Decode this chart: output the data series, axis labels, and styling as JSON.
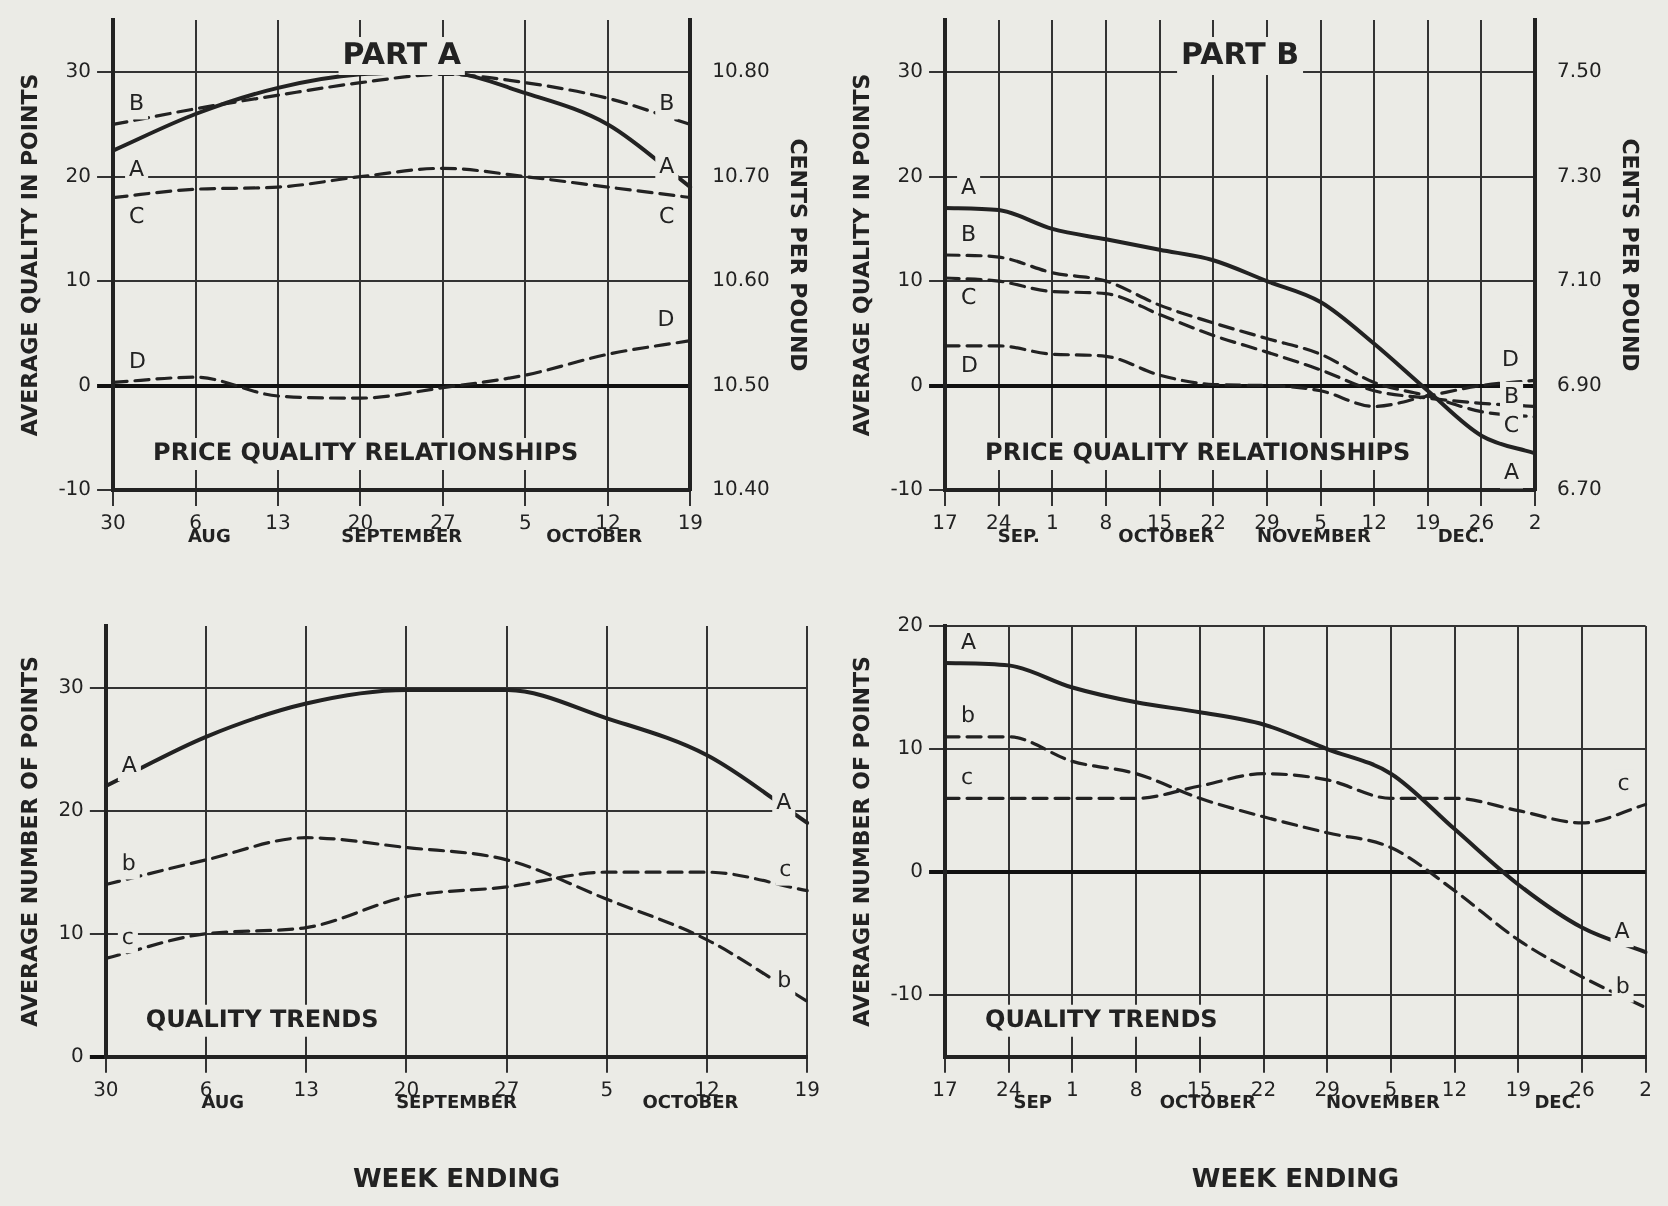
{
  "chart_data": [
    {
      "type": "line",
      "title": "PART A",
      "subtitle": "PRICE QUALITY RELATIONSHIPS",
      "ylabel": "AVERAGE QUALITY IN POINTS",
      "y2label": "CENTS PER POUND",
      "categories": [
        "30",
        "6",
        "13",
        "20",
        "27",
        "5",
        "12",
        "19"
      ],
      "series": [
        {
          "name": "A",
          "color": "#222222",
          "line_style": "solid",
          "values": [
            22.5,
            26,
            28.5,
            29.8,
            30,
            28,
            25,
            19
          ]
        },
        {
          "name": "B",
          "color": "#222222",
          "line_style": "dashed",
          "values": [
            25,
            26.5,
            27.8,
            29,
            29.8,
            29,
            27.5,
            25
          ]
        },
        {
          "name": "C",
          "color": "#222222",
          "line_style": "dashed",
          "values": [
            18,
            18.8,
            19,
            20,
            20.8,
            20,
            19,
            18
          ]
        },
        {
          "name": "D",
          "color": "#222222",
          "line_style": "dashed",
          "values": [
            0.3,
            0.8,
            -1,
            -1.2,
            -0.2,
            1,
            3,
            4.3
          ]
        }
      ],
      "ylim": [
        -10,
        35
      ],
      "yticks": [
        -10,
        0,
        10,
        20,
        30
      ],
      "y2lim": [
        10.4,
        10.85
      ],
      "y2ticks": [
        {
          "value": 10.4,
          "label": "10.40"
        },
        {
          "value": 10.5,
          "label": "10.50"
        },
        {
          "value": 10.6,
          "label": "10.60"
        },
        {
          "value": 10.7,
          "label": "10.70"
        },
        {
          "value": 10.8,
          "label": "10.80"
        }
      ],
      "annotations": [
        "AUG",
        "SEPTEMBER",
        "OCTOBER"
      ],
      "grid": true,
      "legend": false,
      "marker": "none"
    },
    {
      "type": "line",
      "title": "PART B",
      "subtitle": "PRICE QUALITY RELATIONSHIPS",
      "ylabel": "AVERAGE QUALITY IN POINTS",
      "y2label": "CENTS PER POUND",
      "categories": [
        "17",
        "24",
        "1",
        "8",
        "15",
        "22",
        "29",
        "5",
        "12",
        "19",
        "26",
        "2"
      ],
      "series": [
        {
          "name": "A",
          "color": "#222222",
          "line_style": "solid",
          "values": [
            17,
            16.8,
            15,
            14,
            13,
            12,
            10,
            8,
            4,
            -0.5,
            -4.8,
            -6.5
          ]
        },
        {
          "name": "B",
          "color": "#222222",
          "line_style": "dashed",
          "values": [
            12.5,
            12.3,
            10.8,
            10,
            7.7,
            6,
            4.5,
            3,
            0.3,
            -1,
            -2.5,
            -3
          ]
        },
        {
          "name": "C",
          "color": "#222222",
          "line_style": "dashed",
          "values": [
            10.3,
            10,
            9,
            8.8,
            6.8,
            4.8,
            3.2,
            1.5,
            -0.5,
            -1.2,
            -1.7,
            -2
          ]
        },
        {
          "name": "D",
          "color": "#222222",
          "line_style": "dashed",
          "values": [
            3.8,
            3.8,
            3,
            2.8,
            1,
            0.1,
            0,
            -0.5,
            -2,
            -1,
            0,
            0.5
          ]
        }
      ],
      "ylim": [
        -10,
        35
      ],
      "yticks": [
        -10,
        0,
        10,
        20,
        30
      ],
      "y2lim": [
        6.7,
        7.6
      ],
      "y2ticks": [
        {
          "value": 6.7,
          "label": "6.70"
        },
        {
          "value": 6.9,
          "label": "6.90"
        },
        {
          "value": 7.1,
          "label": "7.10"
        },
        {
          "value": 7.3,
          "label": "7.30"
        },
        {
          "value": 7.5,
          "label": "7.50"
        }
      ],
      "annotations": [
        "SEP.",
        "OCTOBER",
        "NOVEMBER",
        "DEC."
      ],
      "grid": true,
      "legend": false,
      "marker": "none"
    },
    {
      "type": "line",
      "subtitle": "QUALITY TRENDS",
      "ylabel": "AVERAGE NUMBER OF POINTS",
      "xlabel": "WEEK ENDING",
      "categories": [
        "30",
        "6",
        "13",
        "20",
        "27",
        "5",
        "12",
        "19"
      ],
      "series": [
        {
          "name": "A",
          "color": "#222222",
          "line_style": "solid",
          "values": [
            22,
            26,
            28.7,
            29.8,
            29.8,
            27.5,
            24.5,
            19
          ]
        },
        {
          "name": "b",
          "color": "#222222",
          "line_style": "dashed",
          "values": [
            14,
            16,
            17.8,
            17,
            16,
            12.8,
            9.5,
            4.5
          ]
        },
        {
          "name": "c",
          "color": "#222222",
          "line_style": "dashed",
          "values": [
            8,
            10,
            10.5,
            13,
            13.8,
            15,
            15,
            13.5
          ]
        }
      ],
      "ylim": [
        0,
        35
      ],
      "yticks": [
        0,
        10,
        20,
        30
      ],
      "annotations": [
        "AUG",
        "SEPTEMBER",
        "OCTOBER"
      ],
      "grid": true,
      "legend": false,
      "marker": "none"
    },
    {
      "type": "line",
      "subtitle": "QUALITY TRENDS",
      "ylabel": "AVERAGE NUMBER OF POINTS",
      "xlabel": "WEEK ENDING",
      "categories": [
        "17",
        "24",
        "1",
        "8",
        "15",
        "22",
        "29",
        "5",
        "12",
        "19",
        "26",
        "2"
      ],
      "series": [
        {
          "name": "A",
          "color": "#222222",
          "line_style": "solid",
          "values": [
            17,
            16.8,
            15,
            13.8,
            13,
            12,
            10,
            8,
            3.5,
            -1,
            -4.5,
            -6.5
          ]
        },
        {
          "name": "b",
          "color": "#222222",
          "line_style": "dashed",
          "values": [
            11,
            11,
            9,
            8,
            6,
            4.5,
            3.2,
            2,
            -1.5,
            -5.5,
            -8.5,
            -11
          ]
        },
        {
          "name": "c",
          "color": "#222222",
          "line_style": "dashed",
          "values": [
            6,
            6,
            6,
            6,
            7,
            8,
            7.5,
            6,
            6,
            5,
            4,
            5.5
          ]
        }
      ],
      "ylim": [
        -15,
        20
      ],
      "yticks": [
        -10,
        0,
        10,
        20
      ],
      "annotations": [
        "SEP",
        "OCTOBER",
        "NOVEMBER",
        "DEC."
      ],
      "grid": true,
      "legend": false,
      "marker": "none"
    }
  ]
}
